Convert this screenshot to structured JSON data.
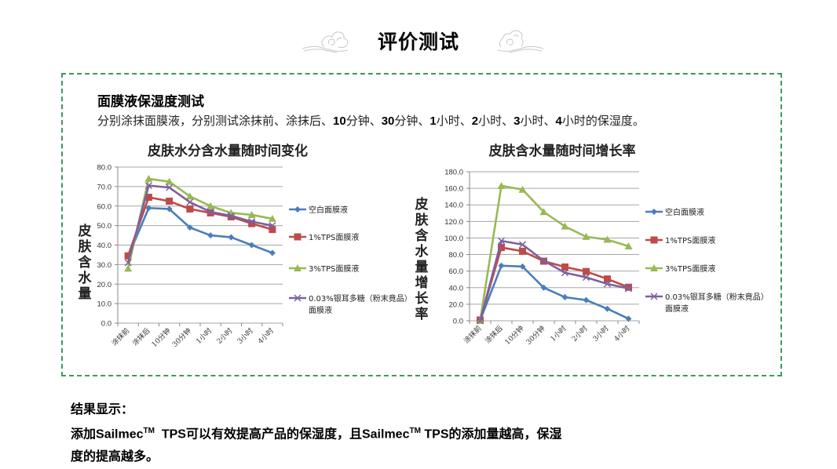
{
  "header": {
    "title": "评价测试",
    "left_icon": "cloud-ornament-icon",
    "right_icon": "cloud-ornament-icon"
  },
  "panel": {
    "heading": "面膜液保湿度测试",
    "description_parts": [
      {
        "text": "分别涂抹面膜液，分别测试涂抹前、涂抹后、",
        "bold": false
      },
      {
        "text": "10",
        "bold": true
      },
      {
        "text": "分钟、",
        "bold": false
      },
      {
        "text": "30",
        "bold": true
      },
      {
        "text": "分钟、",
        "bold": false
      },
      {
        "text": "1",
        "bold": true
      },
      {
        "text": "小时、",
        "bold": false
      },
      {
        "text": "2",
        "bold": true
      },
      {
        "text": "小时、",
        "bold": false
      },
      {
        "text": "3",
        "bold": true
      },
      {
        "text": "小时、",
        "bold": false
      },
      {
        "text": "4",
        "bold": true
      },
      {
        "text": "小时的保湿度。",
        "bold": false
      }
    ]
  },
  "colors": {
    "border": "#3a9a5c",
    "blue": "#4a7ebb",
    "red": "#be4b48",
    "green": "#98b954",
    "purple": "#7d60a0",
    "grid": "#a6a6a6"
  },
  "chart_data": [
    {
      "type": "line",
      "title": "皮肤水分含水量随时间变化",
      "xlabel": "",
      "ylabel": "皮肤含水量",
      "ylim": [
        0,
        80
      ],
      "yticks": [
        "0.0",
        "10.0",
        "20.0",
        "30.0",
        "40.0",
        "50.0",
        "60.0",
        "70.0",
        "80.0"
      ],
      "grid": true,
      "legend_position": "right",
      "categories": [
        "涂抹前",
        "涂抹后",
        "10分钟",
        "30分钟",
        "1小时",
        "2小时",
        "3小时",
        "4小时"
      ],
      "series": [
        {
          "name": "空白面膜液",
          "marker": "diamond",
          "color": "#4a7ebb",
          "values": [
            34,
            59,
            58.5,
            49,
            45,
            44,
            40,
            36
          ]
        },
        {
          "name": "1%TPS面膜液",
          "marker": "square",
          "color": "#be4b48",
          "values": [
            34.5,
            64.5,
            62.5,
            58.5,
            56.5,
            54.5,
            51,
            48
          ]
        },
        {
          "name": "3%TPS面膜液",
          "marker": "triangle",
          "color": "#98b954",
          "values": [
            28,
            74,
            72.5,
            65,
            60,
            56.5,
            55.5,
            53.5
          ]
        },
        {
          "name": "0.03%银耳多糖（粉末竟品）面膜液",
          "marker": "x",
          "color": "#7d60a0",
          "values": [
            31,
            70.5,
            69.5,
            62,
            57,
            55,
            52,
            50
          ]
        }
      ]
    },
    {
      "type": "line",
      "title": "皮肤含水量随时间增长率",
      "xlabel": "",
      "ylabel": "皮肤含水量增长率",
      "ylim": [
        0,
        180
      ],
      "yticks": [
        "0.0",
        "20.0",
        "40.0",
        "60.0",
        "80.0",
        "100.0",
        "120.0",
        "140.0",
        "160.0",
        "180.0"
      ],
      "grid": true,
      "legend_position": "right",
      "categories": [
        "涂抹前",
        "涂抹后",
        "10分钟",
        "30分钟",
        "1小时",
        "2小时",
        "3小时",
        "4小时"
      ],
      "series": [
        {
          "name": "空白面膜液",
          "marker": "diamond",
          "color": "#4a7ebb",
          "values": [
            0.5,
            66.5,
            65.5,
            40,
            28.5,
            25,
            14.5,
            2.5
          ]
        },
        {
          "name": "1%TPS面膜液",
          "marker": "square",
          "color": "#be4b48",
          "values": [
            1,
            88.5,
            84,
            72,
            65,
            59.5,
            50.5,
            40.5
          ]
        },
        {
          "name": "3%TPS面膜液",
          "marker": "triangle",
          "color": "#98b954",
          "values": [
            0,
            163,
            158.5,
            131.5,
            114,
            101.5,
            98,
            90
          ]
        },
        {
          "name": "0.03%银耳多糖（粉末竟品）面膜液",
          "marker": "x",
          "color": "#7d60a0",
          "values": [
            0,
            96.5,
            92,
            72.5,
            58,
            52.5,
            44.5,
            39
          ]
        }
      ]
    }
  ],
  "legend_lines": [
    [
      "空白面膜液"
    ],
    [
      "1%TPS面膜液"
    ],
    [
      "3%TPS面膜液"
    ],
    [
      "0.03%银耳多糖（粉末竟品）",
      "面膜液"
    ]
  ],
  "results": {
    "label": "结果显示：",
    "line1_parts": [
      "添加",
      "Sailmec",
      "TM",
      "  TPS",
      "可以有效提高产品的保湿度，且",
      "Sailmec",
      "TM",
      " TPS",
      "的添加量越高，保湿"
    ],
    "line2": "度的提高越多。"
  }
}
